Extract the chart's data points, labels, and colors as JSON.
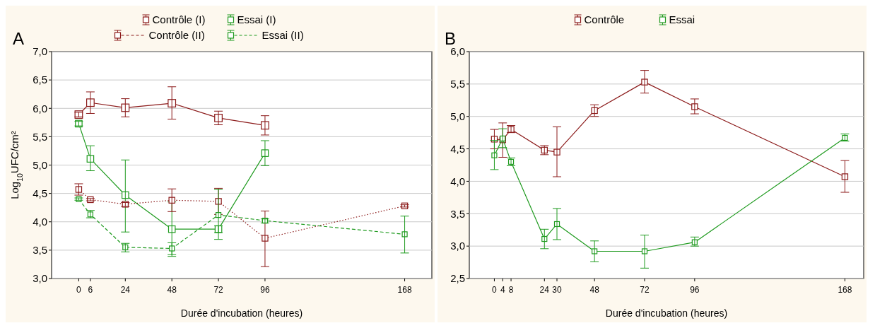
{
  "chart_data": [
    {
      "type": "line",
      "title": "A",
      "ylabel": "Log$_{10}$UFC/cm²",
      "xlabel": "Durée d'incubation (heures)",
      "xlim": [
        -14,
        182
      ],
      "xticks": [
        0,
        6,
        24,
        48,
        72,
        96,
        168
      ],
      "ylim": [
        3,
        7
      ],
      "yticks": [
        {
          "value": 3,
          "label": "3,0"
        },
        {
          "value": 3.5,
          "label": "3,5"
        },
        {
          "value": 4,
          "label": "4,0"
        },
        {
          "value": 4.5,
          "label": "4,5"
        },
        {
          "value": 5,
          "label": "5,0"
        },
        {
          "value": 5.5,
          "label": "5,5"
        },
        {
          "value": 6,
          "label": "6,0"
        },
        {
          "value": 6.5,
          "label": "6,5"
        },
        {
          "value": 7,
          "label": "7,0"
        }
      ],
      "grid": "y",
      "legend": "top",
      "marker": "square",
      "series": [
        {
          "name": "Contrôle (I)",
          "color": "#8b1a1a",
          "line_style": "solid",
          "x": [
            0,
            6,
            24,
            48,
            72,
            96
          ],
          "values": [
            5.89,
            6.1,
            6.01,
            6.09,
            5.83,
            5.7
          ],
          "errors": [
            [
              5.85,
              5.93
            ],
            [
              5.91,
              6.29
            ],
            [
              5.85,
              6.17
            ],
            [
              5.81,
              6.38
            ],
            [
              5.71,
              5.95
            ],
            [
              5.53,
              5.87
            ]
          ]
        },
        {
          "name": "Essai (I)",
          "color": "#1e9a1e",
          "line_style": "solid",
          "x": [
            0,
            6,
            24,
            48,
            72,
            96
          ],
          "values": [
            5.73,
            5.11,
            4.47,
            3.87,
            3.87,
            5.21
          ],
          "errors": [
            [
              5.69,
              5.77
            ],
            [
              4.9,
              5.34
            ],
            [
              3.82,
              5.09
            ],
            [
              3.42,
              4.35
            ],
            [
              3.81,
              3.93
            ],
            [
              4.99,
              5.43
            ]
          ]
        },
        {
          "name": "Contrôle (II)",
          "color": "#8b1a1a",
          "line_style": "dotted",
          "x": [
            0,
            6,
            24,
            48,
            72,
            96,
            168
          ],
          "values": [
            4.57,
            4.39,
            4.31,
            4.38,
            4.36,
            3.71,
            4.28
          ],
          "errors": [
            [
              4.47,
              4.67
            ],
            [
              4.37,
              4.41
            ],
            [
              4.27,
              4.34
            ],
            [
              4.18,
              4.58
            ],
            [
              4.13,
              4.59
            ],
            [
              3.21,
              4.19
            ],
            [
              4.26,
              4.3
            ]
          ]
        },
        {
          "name": "Essai (II)",
          "color": "#1e9a1e",
          "line_style": "dashed",
          "x": [
            0,
            6,
            24,
            48,
            72,
            96,
            168
          ],
          "values": [
            4.4,
            4.13,
            3.55,
            3.53,
            4.12,
            4.02,
            3.78
          ],
          "errors": [
            [
              4.38,
              4.42
            ],
            [
              4.07,
              4.2
            ],
            [
              3.47,
              3.62
            ],
            [
              3.39,
              3.63
            ],
            [
              3.69,
              4.57
            ],
            [
              3.98,
              4.05
            ],
            [
              3.45,
              4.1
            ]
          ]
        }
      ]
    },
    {
      "type": "line",
      "title": "B",
      "xlabel": "Durée d'incubation (heures)",
      "xlim": [
        -12,
        177
      ],
      "xticks": [
        0,
        4,
        8,
        24,
        30,
        48,
        72,
        96,
        168
      ],
      "ylim": [
        2.5,
        6
      ],
      "yticks": [
        {
          "value": 2.5,
          "label": "2,5"
        },
        {
          "value": 3,
          "label": "3,0"
        },
        {
          "value": 3.5,
          "label": "3,5"
        },
        {
          "value": 4,
          "label": "4,0"
        },
        {
          "value": 4.5,
          "label": "4,5"
        },
        {
          "value": 5,
          "label": "5,0"
        },
        {
          "value": 5.5,
          "label": "5,5"
        },
        {
          "value": 6,
          "label": "6,0"
        }
      ],
      "grid": "y",
      "legend": "top",
      "marker": "square",
      "series": [
        {
          "name": "Contrôle",
          "color": "#8b1a1a",
          "line_style": "solid",
          "x": [
            0,
            4,
            8,
            24,
            30,
            48,
            72,
            96,
            168
          ],
          "values": [
            4.65,
            4.64,
            4.8,
            4.48,
            4.45,
            5.09,
            5.53,
            5.15,
            4.07
          ],
          "errors": [
            [
              4.5,
              4.8
            ],
            [
              4.37,
              4.9
            ],
            [
              4.75,
              4.86
            ],
            [
              4.41,
              4.55
            ],
            [
              4.07,
              4.84
            ],
            [
              5.0,
              5.18
            ],
            [
              5.36,
              5.71
            ],
            [
              5.04,
              5.27
            ],
            [
              3.83,
              4.32
            ]
          ]
        },
        {
          "name": "Essai",
          "color": "#1e9a1e",
          "line_style": "solid",
          "x": [
            0,
            4,
            8,
            24,
            30,
            48,
            72,
            96,
            168
          ],
          "values": [
            4.4,
            4.66,
            4.3,
            3.11,
            3.34,
            2.92,
            2.92,
            3.06,
            4.67
          ],
          "errors": [
            [
              4.18,
              4.63
            ],
            [
              4.52,
              4.81
            ],
            [
              4.24,
              4.36
            ],
            [
              2.96,
              3.26
            ],
            [
              3.1,
              3.58
            ],
            [
              2.76,
              3.08
            ],
            [
              2.66,
              3.17
            ],
            [
              3.0,
              3.14
            ],
            [
              4.62,
              4.73
            ]
          ]
        }
      ]
    }
  ]
}
